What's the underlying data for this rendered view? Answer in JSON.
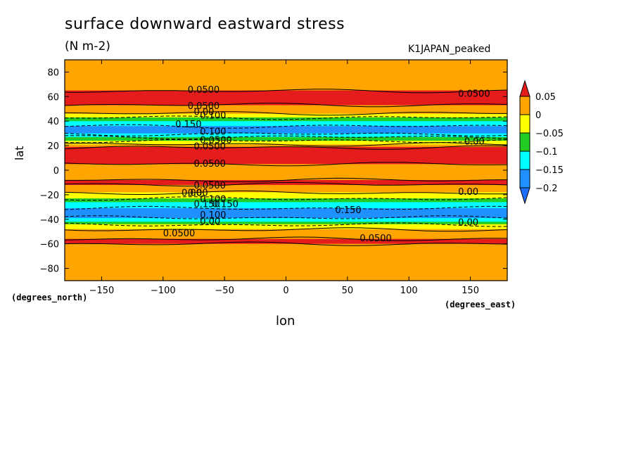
{
  "chart_data": {
    "type": "heatmap",
    "title": "surface downward eastward stress",
    "units": "(N m-2)",
    "model": "K1JAPAN_peaked",
    "xlabel": "lon",
    "ylabel": "lat",
    "xunits": "(degrees_east)",
    "yunits": "(degrees_north)",
    "xlim": [
      -180,
      180
    ],
    "ylim": [
      -90,
      90
    ],
    "xticks": [
      -150,
      -100,
      -50,
      0,
      50,
      100,
      150
    ],
    "yticks": [
      80,
      60,
      40,
      20,
      0,
      -20,
      -40,
      -60,
      -80
    ],
    "colorbar": {
      "levels": [
        0.05,
        0,
        -0.05,
        -0.1,
        -0.15,
        -0.2
      ],
      "labels": [
        "0.05",
        "0",
        "−0.05",
        "−0.1",
        "−0.15",
        "−0.2"
      ],
      "colors": [
        "#e51c1c",
        "#ffa500",
        "#ffff00",
        "#22cc22",
        "#00ffff",
        "#1e90ff",
        "#1e6fff"
      ]
    },
    "zonal_mean_profile": [
      {
        "lat": 90,
        "value": 0.02
      },
      {
        "lat": 70,
        "value": 0.03
      },
      {
        "lat": 62,
        "value": 0.06
      },
      {
        "lat": 55,
        "value": 0.06
      },
      {
        "lat": 48,
        "value": 0.02
      },
      {
        "lat": 44,
        "value": -0.03
      },
      {
        "lat": 40,
        "value": -0.1
      },
      {
        "lat": 35,
        "value": -0.16
      },
      {
        "lat": 30,
        "value": -0.16
      },
      {
        "lat": 26,
        "value": -0.08
      },
      {
        "lat": 22,
        "value": -0.02
      },
      {
        "lat": 18,
        "value": 0.06
      },
      {
        "lat": 12,
        "value": 0.07
      },
      {
        "lat": 6,
        "value": 0.06
      },
      {
        "lat": 2,
        "value": 0.02
      },
      {
        "lat": -4,
        "value": 0.03
      },
      {
        "lat": -10,
        "value": 0.06
      },
      {
        "lat": -16,
        "value": 0.02
      },
      {
        "lat": -22,
        "value": -0.03
      },
      {
        "lat": -26,
        "value": -0.1
      },
      {
        "lat": -32,
        "value": -0.16
      },
      {
        "lat": -38,
        "value": -0.16
      },
      {
        "lat": -42,
        "value": -0.1
      },
      {
        "lat": -46,
        "value": -0.02
      },
      {
        "lat": -52,
        "value": 0.03
      },
      {
        "lat": -58,
        "value": 0.06
      },
      {
        "lat": -64,
        "value": 0.03
      },
      {
        "lat": -90,
        "value": 0.01
      }
    ],
    "contour_labels": [
      "0.0500",
      "0.0500",
      "0.00",
      "0.100",
      "0.150",
      "0.100",
      "0.0500",
      "0.0500",
      "0.0500",
      "0.0500",
      "0.00",
      "0.100",
      "0.150",
      "0.100",
      "0.00",
      "0.0500",
      "0.150",
      "0.00",
      "0.00",
      "0.150",
      "0.00",
      "0.00",
      "0.0500",
      "0.0500"
    ]
  }
}
